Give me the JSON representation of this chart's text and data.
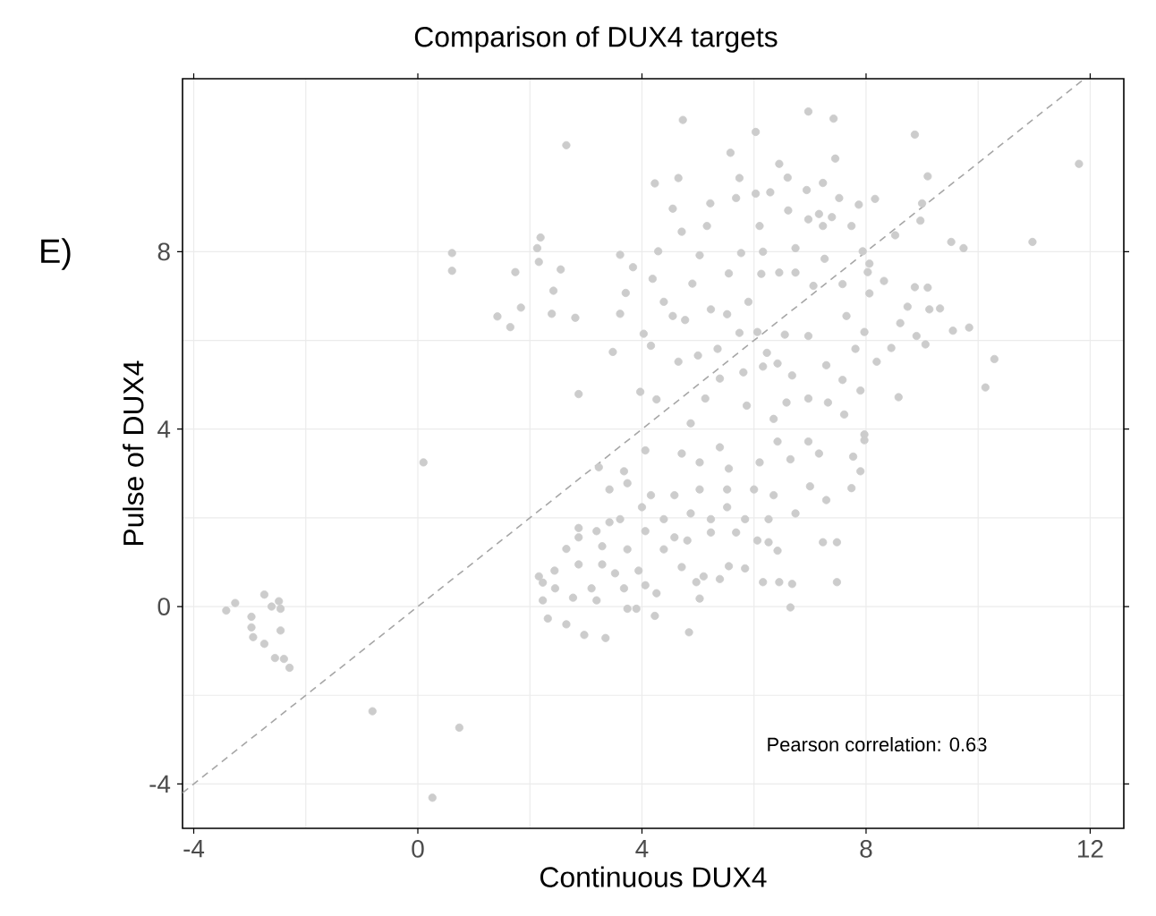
{
  "chart_data": {
    "type": "scatter",
    "title": "Comparison of DUX4 targets",
    "xlabel": "Continuous DUX4",
    "ylabel": "Pulse of DUX4",
    "annotations": [
      "E)",
      "Pearson correlation: 0.63"
    ],
    "xlim": [
      -4.2,
      12.6
    ],
    "ylim": [
      -5,
      11.9
    ],
    "xticks": [
      -4,
      0,
      4,
      8,
      12
    ],
    "yticks": [
      -4,
      0,
      4,
      8
    ],
    "grid": true,
    "marker": "circle",
    "series": [
      {
        "color": "#cccccc",
        "x": [
          4.73,
          6.97,
          7.42,
          6.03,
          8.87,
          2.65,
          11.8,
          5.58,
          7.45,
          6.45,
          9.1,
          6.6,
          4.23,
          4.65,
          5.74,
          7.23,
          6.94,
          6.03,
          6.29,
          5.68,
          7.52,
          8.16,
          5.22,
          4.55,
          7.87,
          7.16,
          7.39,
          6.97,
          7.23,
          7.74,
          6.1,
          6.61,
          5.16,
          4.71,
          8.52,
          9.52,
          9.74,
          10.97,
          9.0,
          8.97,
          2.19,
          0.61,
          0.61,
          2.13,
          1.74,
          2.16,
          2.55,
          3.61,
          3.84,
          4.29,
          5.03,
          5.77,
          6.16,
          6.74,
          7.26,
          7.94,
          8.06,
          2.42,
          1.42,
          1.65,
          1.84,
          2.39,
          2.81,
          3.61,
          3.71,
          4.19,
          4.39,
          4.9,
          5.23,
          5.55,
          5.9,
          6.13,
          6.45,
          6.74,
          7.06,
          7.58,
          8.03,
          8.32,
          8.06,
          8.87,
          9.1,
          8.74,
          9.13,
          9.32,
          8.61,
          8.9,
          9.55,
          9.84,
          9.06,
          8.45,
          10.29,
          10.13,
          8.58,
          8.19,
          7.97,
          7.65,
          7.81,
          7.29,
          6.97,
          6.55,
          6.23,
          6.06,
          5.74,
          5.35,
          5.52,
          4.77,
          4.55,
          4.16,
          4.03,
          3.48,
          2.87,
          3.97,
          4.26,
          4.65,
          5.0,
          5.39,
          5.81,
          6.16,
          6.42,
          6.68,
          6.97,
          7.32,
          7.58,
          7.9,
          7.61,
          7.97,
          6.58,
          5.87,
          5.13,
          4.87,
          6.35,
          0.1,
          -0.81,
          0.74,
          0.26,
          -3.42,
          -3.26,
          -2.74,
          -2.48,
          -2.97,
          -2.97,
          -2.94,
          -2.74,
          -2.61,
          -2.45,
          -2.45,
          -2.55,
          -2.39,
          -2.29,
          2.23,
          2.44,
          2.65,
          2.23,
          2.32,
          2.65,
          2.97,
          3.35,
          2.87,
          3.1,
          3.29,
          3.19,
          2.45,
          2.77,
          2.16,
          3.29,
          3.52,
          3.74,
          3.9,
          4.23,
          4.84,
          3.68,
          3.94,
          4.06,
          4.26,
          2.87,
          3.19,
          3.42,
          2.87,
          3.74,
          4.06,
          4.39,
          4.58,
          4.71,
          4.97,
          5.03,
          5.1,
          5.39,
          5.55,
          5.84,
          6.16,
          6.42,
          6.45,
          6.68,
          6.65,
          7.48,
          7.48,
          7.23,
          6.06,
          6.26,
          5.23,
          5.68,
          4.81,
          4.0,
          3.61,
          4.39,
          4.87,
          5.23,
          5.52,
          5.84,
          6.26,
          6.74,
          3.42,
          3.74,
          4.16,
          4.58,
          5.03,
          5.52,
          6.0,
          6.35,
          7.0,
          7.29,
          7.74,
          7.9,
          7.77,
          7.97,
          7.16,
          6.65,
          6.1,
          5.55,
          5.03,
          4.71,
          4.06,
          3.68,
          3.23,
          5.39,
          6.42,
          6.97
        ],
        "values": [
          10.97,
          11.16,
          11.0,
          10.7,
          10.64,
          10.4,
          9.98,
          10.23,
          10.1,
          9.98,
          9.7,
          9.67,
          9.54,
          9.66,
          9.66,
          9.55,
          9.39,
          9.31,
          9.34,
          9.21,
          9.21,
          9.19,
          9.09,
          8.97,
          9.06,
          8.85,
          8.78,
          8.73,
          8.58,
          8.58,
          8.58,
          8.93,
          8.58,
          8.45,
          8.37,
          8.22,
          8.08,
          8.22,
          9.09,
          8.7,
          8.32,
          7.97,
          7.57,
          8.08,
          7.54,
          7.77,
          7.6,
          7.93,
          7.65,
          8.01,
          7.92,
          7.97,
          8.0,
          8.08,
          7.84,
          8.01,
          7.73,
          7.12,
          6.54,
          6.3,
          6.74,
          6.6,
          6.51,
          6.6,
          7.07,
          7.39,
          6.87,
          7.28,
          6.7,
          7.51,
          6.87,
          7.5,
          7.53,
          7.53,
          7.23,
          7.27,
          7.54,
          7.34,
          7.06,
          7.2,
          7.19,
          6.76,
          6.7,
          6.72,
          6.39,
          6.1,
          6.22,
          6.29,
          5.91,
          5.83,
          5.58,
          4.94,
          4.72,
          5.52,
          6.19,
          6.55,
          5.81,
          5.44,
          6.1,
          6.13,
          5.72,
          6.19,
          6.17,
          5.81,
          6.59,
          6.46,
          6.55,
          5.88,
          6.15,
          5.74,
          4.79,
          4.84,
          4.67,
          5.52,
          5.66,
          5.14,
          5.28,
          5.41,
          5.48,
          5.21,
          4.69,
          4.6,
          5.11,
          4.87,
          4.33,
          3.88,
          4.6,
          4.53,
          4.69,
          4.13,
          4.23,
          3.25,
          -2.36,
          -2.73,
          -4.31,
          -0.09,
          0.08,
          0.27,
          0.12,
          -0.23,
          -0.47,
          -0.69,
          -0.84,
          0.0,
          -0.05,
          -0.54,
          -1.16,
          -1.18,
          -1.38,
          0.54,
          0.81,
          1.3,
          0.14,
          -0.27,
          -0.4,
          -0.64,
          -0.71,
          0.95,
          0.41,
          0.95,
          0.14,
          0.41,
          0.2,
          0.68,
          1.36,
          0.75,
          -0.05,
          -0.05,
          -0.21,
          -0.58,
          0.41,
          0.81,
          0.48,
          0.3,
          1.56,
          1.7,
          1.9,
          1.77,
          1.29,
          1.7,
          1.29,
          1.56,
          0.89,
          0.55,
          0.18,
          0.68,
          0.62,
          0.91,
          0.86,
          0.55,
          1.26,
          0.55,
          0.51,
          -0.02,
          1.45,
          0.55,
          1.45,
          1.49,
          1.45,
          1.67,
          1.67,
          1.49,
          2.24,
          1.97,
          1.97,
          2.1,
          1.97,
          2.24,
          1.97,
          1.97,
          2.1,
          2.64,
          2.78,
          2.51,
          2.51,
          2.64,
          2.64,
          2.64,
          2.51,
          2.71,
          2.4,
          2.67,
          3.05,
          3.38,
          3.75,
          3.45,
          3.32,
          3.25,
          3.11,
          3.25,
          3.45,
          3.52,
          3.05,
          3.14,
          3.59,
          3.72,
          3.72
        ]
      },
      {
        "type": "line",
        "color": "#a6a6a6",
        "line_style": "dashed",
        "marker": "none",
        "x": [
          -4.2,
          11.9
        ],
        "values": [
          -4.2,
          11.9
        ]
      }
    ]
  }
}
